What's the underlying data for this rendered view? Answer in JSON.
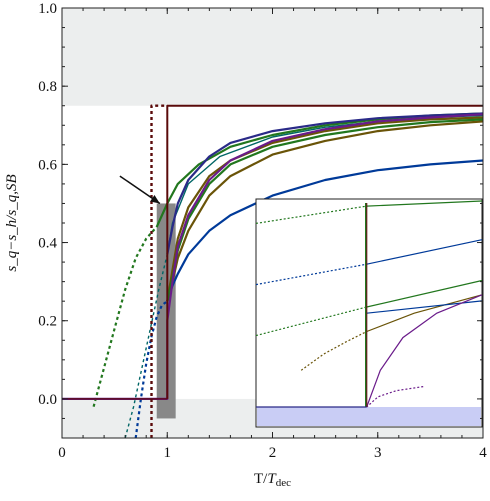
{
  "chart_data": {
    "type": "line",
    "xlabel": "T/T_dec",
    "xlabel_display": {
      "main": "T/",
      "italic": "T",
      "sub": "dec"
    },
    "ylabel": "s_q - s_h / s_q,SB",
    "ylabel_display": "s_q−s_h/s_q,SB",
    "xlim": [
      0,
      4
    ],
    "ylim": [
      -0.1,
      1.0
    ],
    "x_ticks": [
      0,
      1,
      2,
      3,
      4
    ],
    "y_ticks": [
      0.0,
      0.2,
      0.4,
      0.6,
      0.8,
      1.0
    ],
    "x_tick_labels": [
      "0",
      "1",
      "2",
      "3",
      "4"
    ],
    "y_tick_labels": [
      "0.0",
      "0.2",
      "0.4",
      "0.6",
      "0.8",
      "1.0"
    ],
    "shaded_regions": [
      {
        "x": [
          0,
          4
        ],
        "y": [
          0.75,
          1.0
        ],
        "color": "#eceeee"
      },
      {
        "x": [
          0,
          4
        ],
        "y": [
          -0.1,
          0.0
        ],
        "color": "#eceeee"
      },
      {
        "x": [
          0.9,
          1.08
        ],
        "y": [
          -0.05,
          0.5
        ],
        "color": "#888888"
      }
    ],
    "series": [
      {
        "color": "#006666",
        "width": 1.4,
        "values": [
          [
            0,
            0
          ],
          [
            1,
            0
          ],
          [
            1,
            0.37
          ],
          [
            1.05,
            0.45
          ],
          [
            1.2,
            0.55
          ],
          [
            1.5,
            0.62
          ],
          [
            2,
            0.67
          ],
          [
            2.5,
            0.695
          ],
          [
            3,
            0.71
          ],
          [
            3.5,
            0.72
          ],
          [
            4,
            0.725
          ]
        ]
      },
      {
        "color": "#006666",
        "dash": true,
        "width": 1.4,
        "values": [
          [
            0.6,
            -0.1
          ],
          [
            0.68,
            -0.02
          ],
          [
            0.76,
            0.08
          ],
          [
            0.84,
            0.18
          ],
          [
            0.92,
            0.28
          ],
          [
            1,
            0.37
          ]
        ]
      },
      {
        "color": "#22771e",
        "width": 2.2,
        "values": [
          [
            0.9,
            0.44
          ],
          [
            1.0,
            0.5
          ],
          [
            1.1,
            0.55
          ],
          [
            1.3,
            0.6
          ],
          [
            1.6,
            0.645
          ],
          [
            2,
            0.675
          ],
          [
            2.5,
            0.7
          ],
          [
            3,
            0.715
          ],
          [
            3.5,
            0.725
          ],
          [
            4,
            0.73
          ]
        ]
      },
      {
        "color": "#22771e",
        "dash": true,
        "width": 2.2,
        "values": [
          [
            0.3,
            -0.02
          ],
          [
            0.4,
            0.08
          ],
          [
            0.5,
            0.18
          ],
          [
            0.6,
            0.28
          ],
          [
            0.7,
            0.36
          ],
          [
            0.8,
            0.41
          ],
          [
            0.9,
            0.44
          ]
        ]
      },
      {
        "color": "#003a99",
        "width": 2.2,
        "values": [
          [
            1.0,
            0.25
          ],
          [
            1.05,
            0.29
          ],
          [
            1.1,
            0.32
          ],
          [
            1.2,
            0.37
          ],
          [
            1.4,
            0.43
          ],
          [
            1.6,
            0.47
          ],
          [
            2,
            0.52
          ],
          [
            2.5,
            0.56
          ],
          [
            3,
            0.585
          ],
          [
            3.5,
            0.6
          ],
          [
            4,
            0.61
          ]
        ]
      },
      {
        "color": "#003a99",
        "dash": true,
        "width": 2.2,
        "values": [
          [
            0.7,
            -0.1
          ],
          [
            0.75,
            0.0
          ],
          [
            0.8,
            0.09
          ],
          [
            0.85,
            0.16
          ],
          [
            0.9,
            0.21
          ],
          [
            0.95,
            0.24
          ],
          [
            1.0,
            0.25
          ]
        ]
      },
      {
        "color": "#2a2a88",
        "width": 2.2,
        "values": [
          [
            1.0,
            0.37
          ],
          [
            1.05,
            0.44
          ],
          [
            1.1,
            0.5
          ],
          [
            1.2,
            0.56
          ],
          [
            1.4,
            0.62
          ],
          [
            1.6,
            0.655
          ],
          [
            2,
            0.685
          ],
          [
            2.5,
            0.705
          ],
          [
            3,
            0.718
          ],
          [
            3.5,
            0.725
          ],
          [
            4,
            0.73
          ]
        ]
      },
      {
        "color": "#6a5408",
        "width": 2.2,
        "values": [
          [
            1.0,
            0.25
          ],
          [
            1.05,
            0.3
          ],
          [
            1.1,
            0.36
          ],
          [
            1.2,
            0.43
          ],
          [
            1.4,
            0.52
          ],
          [
            1.6,
            0.57
          ],
          [
            2,
            0.625
          ],
          [
            2.5,
            0.66
          ],
          [
            3,
            0.685
          ],
          [
            3.5,
            0.7
          ],
          [
            4,
            0.71
          ]
        ]
      },
      {
        "color": "#6a5408",
        "width": 2.2,
        "values": [
          [
            1.0,
            0.25
          ],
          [
            1.05,
            0.33
          ],
          [
            1.1,
            0.41
          ],
          [
            1.2,
            0.49
          ],
          [
            1.4,
            0.57
          ],
          [
            1.6,
            0.61
          ],
          [
            2,
            0.655
          ],
          [
            2.5,
            0.685
          ],
          [
            3,
            0.705
          ],
          [
            3.5,
            0.715
          ],
          [
            4,
            0.72
          ]
        ]
      },
      {
        "color": "#22771e",
        "width": 2.2,
        "values": [
          [
            1.0,
            0.25
          ],
          [
            1.05,
            0.31
          ],
          [
            1.1,
            0.38
          ],
          [
            1.2,
            0.46
          ],
          [
            1.4,
            0.55
          ],
          [
            1.6,
            0.6
          ],
          [
            2,
            0.645
          ],
          [
            2.5,
            0.675
          ],
          [
            3,
            0.695
          ],
          [
            3.5,
            0.708
          ],
          [
            4,
            0.715
          ]
        ]
      },
      {
        "color": "#6a1b8a",
        "width": 2.2,
        "values": [
          [
            0,
            0
          ],
          [
            1.0,
            0
          ],
          [
            1.0,
            0.2
          ],
          [
            1.05,
            0.3
          ],
          [
            1.1,
            0.39
          ],
          [
            1.2,
            0.47
          ],
          [
            1.4,
            0.56
          ],
          [
            1.6,
            0.61
          ],
          [
            2,
            0.66
          ],
          [
            2.5,
            0.69
          ],
          [
            3,
            0.71
          ],
          [
            3.5,
            0.72
          ],
          [
            4,
            0.728
          ]
        ]
      },
      {
        "color": "#5a0a0a",
        "width": 2.0,
        "values": [
          [
            1.0,
            0.0
          ],
          [
            1.0,
            0.75
          ],
          [
            4,
            0.75
          ]
        ]
      },
      {
        "color": "#5a0a0a",
        "dash": true,
        "width": 2.4,
        "values": [
          [
            0.85,
            -0.1
          ],
          [
            0.85,
            0.75
          ],
          [
            1.0,
            0.75
          ]
        ]
      },
      {
        "color": "#5a0a0a",
        "width": 1.2,
        "values": [
          [
            0,
            0
          ],
          [
            1.0,
            0
          ]
        ]
      }
    ],
    "arrow": {
      "from": [
        0.55,
        0.57
      ],
      "to": [
        0.93,
        0.5
      ]
    },
    "inset": {
      "x_norm_range": [
        0,
        1
      ],
      "y_norm_range": [
        0,
        1
      ],
      "band_color": "#c9cdf5",
      "lines": [
        {
          "color": "#22771e",
          "dash": true,
          "values": [
            [
              0,
              0.9
            ],
            [
              0.49,
              0.985
            ]
          ]
        },
        {
          "color": "#22771e",
          "values": [
            [
              0.49,
              0.985
            ],
            [
              1,
              1.01
            ]
          ]
        },
        {
          "color": "#003a99",
          "dash": true,
          "values": [
            [
              0,
              0.6
            ],
            [
              0.49,
              0.7
            ]
          ]
        },
        {
          "color": "#003a99",
          "values": [
            [
              0.49,
              0.7
            ],
            [
              1,
              0.82
            ]
          ]
        },
        {
          "color": "#22771e",
          "dash": true,
          "values": [
            [
              0,
              0.35
            ],
            [
              0.49,
              0.49
            ]
          ]
        },
        {
          "color": "#22771e",
          "values": [
            [
              0.49,
              0.49
            ],
            [
              1,
              0.62
            ]
          ]
        },
        {
          "color": "#6a5408",
          "dash": true,
          "values": [
            [
              0.2,
              0.18
            ],
            [
              0.3,
              0.26
            ],
            [
              0.4,
              0.32
            ],
            [
              0.49,
              0.37
            ]
          ]
        },
        {
          "color": "#6a5408",
          "values": [
            [
              0.49,
              0.37
            ],
            [
              0.7,
              0.46
            ],
            [
              1,
              0.55
            ]
          ]
        },
        {
          "color": "#003a99",
          "values": [
            [
              0.49,
              0.46
            ],
            [
              1,
              0.52
            ]
          ]
        },
        {
          "color": "#6a1b8a",
          "dash": true,
          "values": [
            [
              0.74,
              0.1
            ],
            [
              0.62,
              0.08
            ],
            [
              0.54,
              0.05
            ],
            [
              0.49,
              0.0
            ]
          ]
        },
        {
          "color": "#6a1b8a",
          "values": [
            [
              0.49,
              0.0
            ],
            [
              0.55,
              0.18
            ],
            [
              0.65,
              0.34
            ],
            [
              0.8,
              0.46
            ],
            [
              1,
              0.55
            ]
          ]
        },
        {
          "color": "#5a0a0a",
          "values": [
            [
              0.49,
              0.0
            ],
            [
              0.49,
              1.0
            ]
          ]
        },
        {
          "color": "#22771e",
          "values": [
            [
              0.485,
              0.0
            ],
            [
              0.485,
              1.0
            ]
          ]
        },
        {
          "color": "#2a2a88",
          "values": [
            [
              0,
              0.0
            ],
            [
              0.49,
              0.0
            ]
          ]
        }
      ]
    }
  }
}
